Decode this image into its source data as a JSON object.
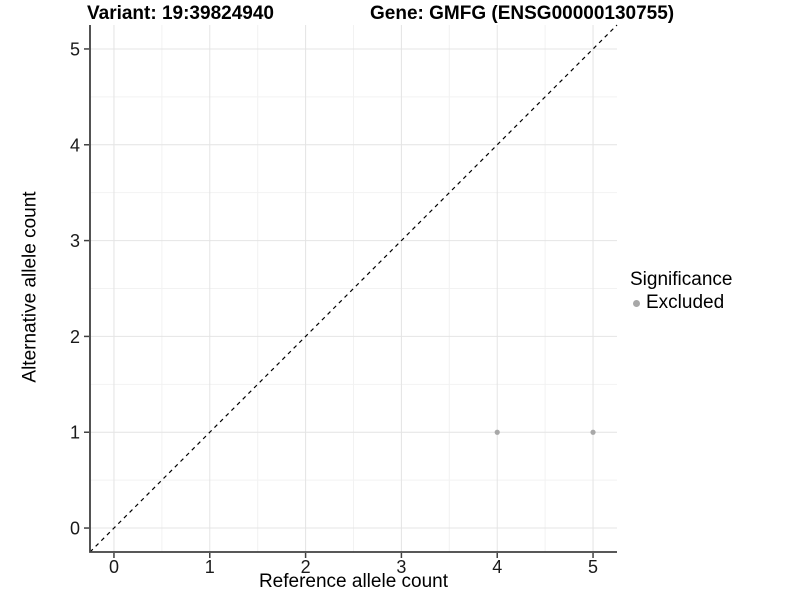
{
  "figure": {
    "title_variant": "Variant: 19:39824940",
    "title_gene": "Gene: GMFG (ENSG00000130755)"
  },
  "legend": {
    "title": "Significance",
    "items": [
      {
        "label": "Excluded",
        "color": "#a8a8a8",
        "marker": "circle"
      }
    ]
  },
  "chart_data": {
    "type": "scatter",
    "title_variant": "Variant: 19:39824940",
    "title_gene": "Gene: GMFG (ENSG00000130755)",
    "xlabel": "Reference allele count",
    "ylabel": "Alternative allele count",
    "xlim": [
      -0.25,
      5.25
    ],
    "ylim": [
      -0.25,
      5.25
    ],
    "x_ticks": [
      0,
      1,
      2,
      3,
      4,
      5
    ],
    "y_ticks": [
      0,
      1,
      2,
      3,
      4,
      5
    ],
    "grid": {
      "major_color": "#e4e4e4",
      "minor_color": "#f2f2f2",
      "minor_offset": 0.5
    },
    "identity_line": {
      "slope": 1,
      "intercept": 0,
      "style": "dashed",
      "color": "#000000"
    },
    "series": [
      {
        "name": "Excluded",
        "color": "#a8a8a8",
        "marker": "circle",
        "marker_radius": 2.6,
        "points": [
          [
            4,
            1
          ],
          [
            5,
            1
          ]
        ]
      }
    ],
    "legend_position": "right",
    "axis_color": "#404040",
    "tick_label_color": "#1a1a1a",
    "tick_label_size": 18
  }
}
